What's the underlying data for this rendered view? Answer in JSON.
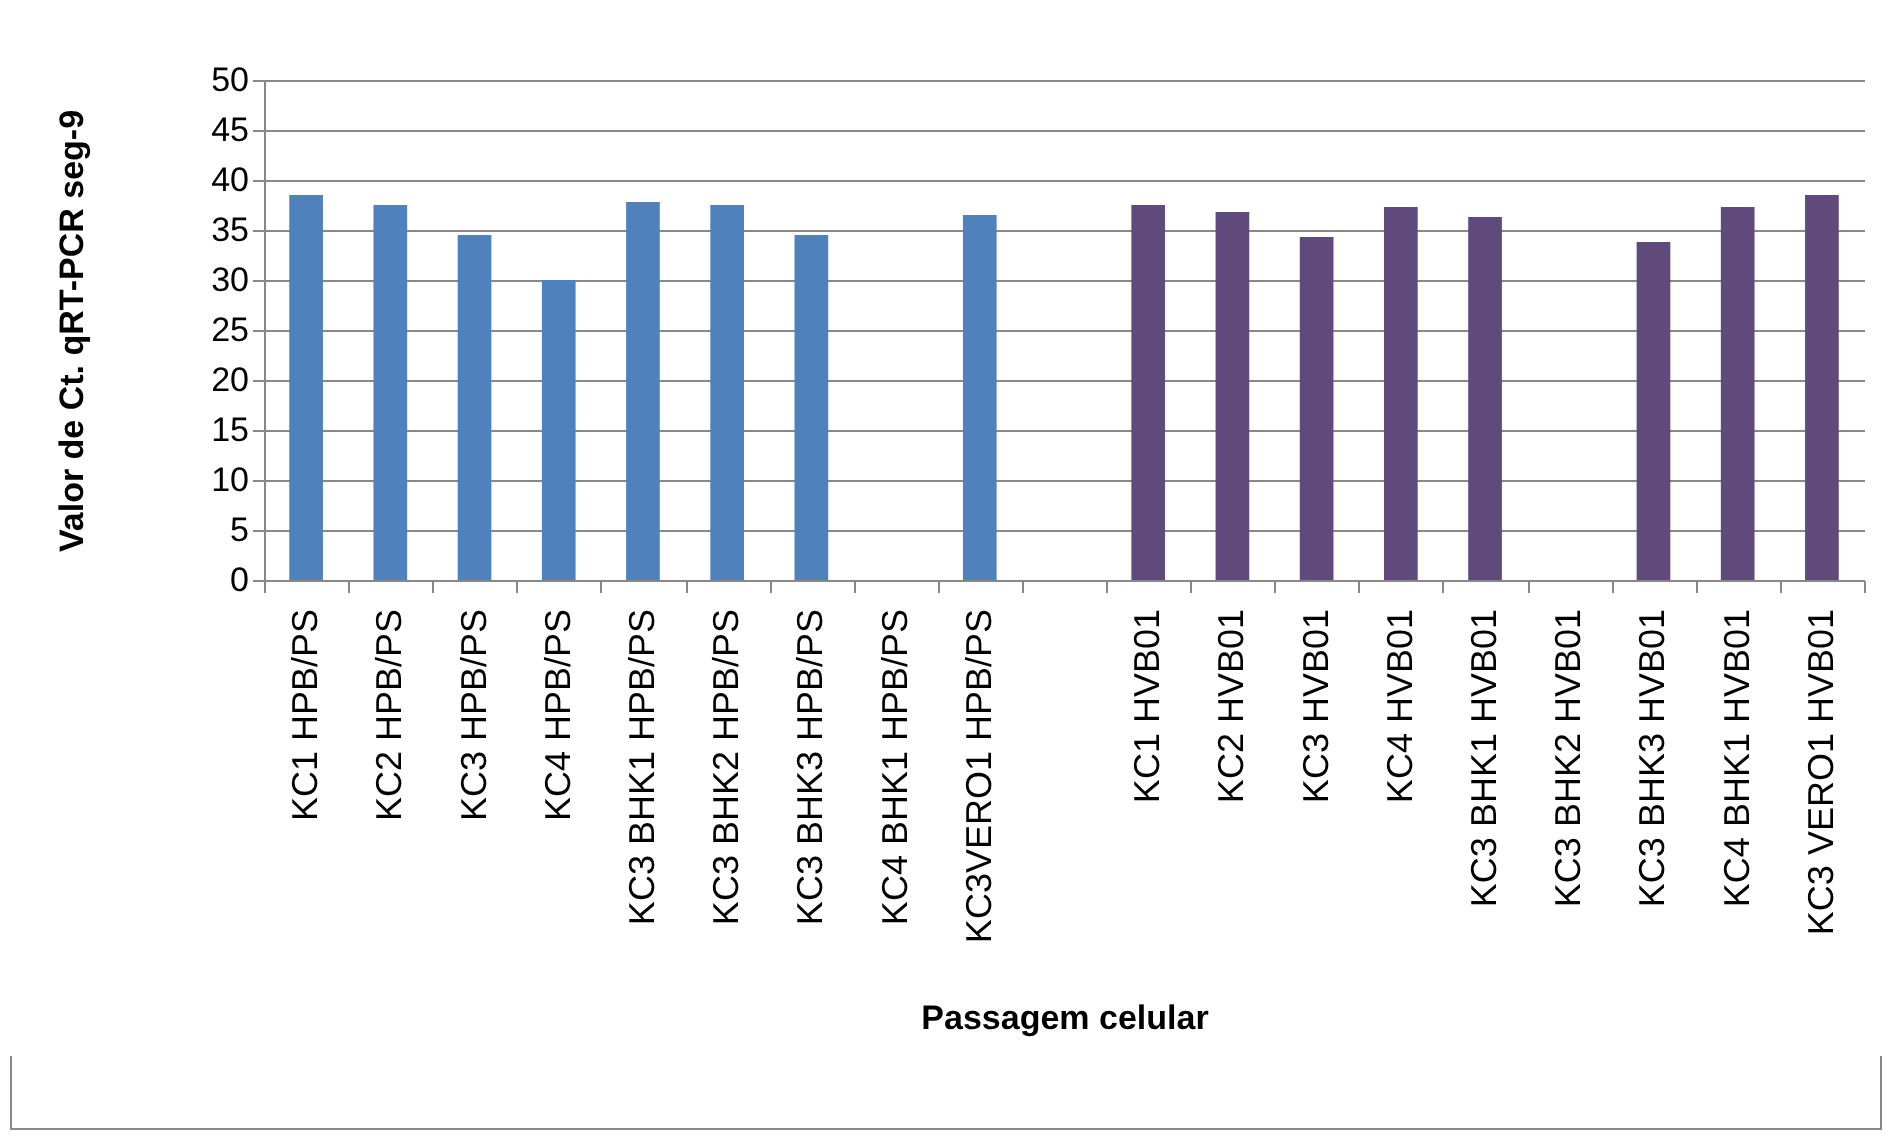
{
  "chart_data": {
    "type": "bar",
    "xlabel": "Passagem celular",
    "ylabel": "Valor de Ct.  qRT-PCR seg-9",
    "categories": [
      "KC1 HPB/PS",
      "KC2 HPB/PS",
      "KC3 HPB/PS",
      "KC4 HPB/PS",
      "KC3 BHK1 HPB/PS",
      "KC3 BHK2 HPB/PS",
      "KC3 BHK3 HPB/PS",
      "KC4 BHK1 HPB/PS",
      "KC3VERO1 HPB/PS",
      null,
      "KC1 HVB01",
      "KC2 HVB01",
      "KC3 HVB01",
      "KC4 HVB01",
      "KC3 BHK1 HVB01",
      "KC3 BHK2 HVB01",
      "KC3 BHK3 HVB01",
      "KC4 BHK1 HVB01",
      "KC3 VERO1 HVB01"
    ],
    "values": [
      38.5,
      37.5,
      34.5,
      30,
      37.8,
      37.5,
      34.5,
      null,
      36.5,
      null,
      37.5,
      36.8,
      34.3,
      37.3,
      36.3,
      null,
      33.8,
      37.3,
      38.5
    ],
    "colors": [
      "#4f81bd",
      "#4f81bd",
      "#4f81bd",
      "#4f81bd",
      "#4f81bd",
      "#4f81bd",
      "#4f81bd",
      "#4f81bd",
      "#4f81bd",
      "#4f81bd",
      "#604a7b",
      "#604a7b",
      "#604a7b",
      "#604a7b",
      "#604a7b",
      "#604a7b",
      "#604a7b",
      "#604a7b",
      "#604a7b"
    ],
    "ylim": [
      0,
      50
    ],
    "yticks": [
      0,
      5,
      10,
      15,
      20,
      25,
      30,
      35,
      40,
      45,
      50
    ],
    "grid": "y"
  }
}
